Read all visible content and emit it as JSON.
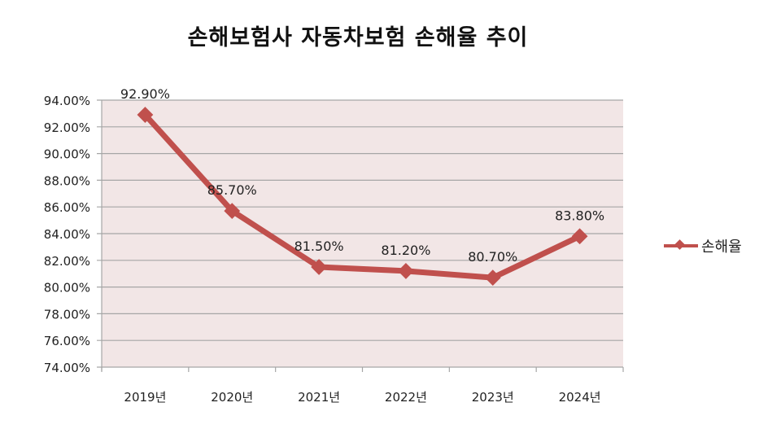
{
  "title": "손해보험사 자동차보험 손해율 추이",
  "colors": {
    "line": "#c0504d",
    "plot_bg": "#f2e6e6",
    "grid": "#a6a6a6",
    "text": "#222222"
  },
  "legend": {
    "label": "손해율"
  },
  "chart_data": {
    "type": "line",
    "title": "손해보험사 자동차보험 손해율 추이",
    "xlabel": "",
    "ylabel": "",
    "categories": [
      "2019년",
      "2020년",
      "2021년",
      "2022년",
      "2023년",
      "2024년"
    ],
    "series": [
      {
        "name": "손해율",
        "values": [
          92.9,
          85.7,
          81.5,
          81.2,
          80.7,
          83.8
        ],
        "labels": [
          "92.90%",
          "85.70%",
          "81.50%",
          "81.20%",
          "80.70%",
          "83.80%"
        ]
      }
    ],
    "ylim": [
      74,
      94
    ],
    "yticks": [
      "74.00%",
      "76.00%",
      "78.00%",
      "80.00%",
      "82.00%",
      "84.00%",
      "86.00%",
      "88.00%",
      "90.00%",
      "92.00%",
      "94.00%"
    ],
    "grid": true,
    "legend_position": "right"
  }
}
